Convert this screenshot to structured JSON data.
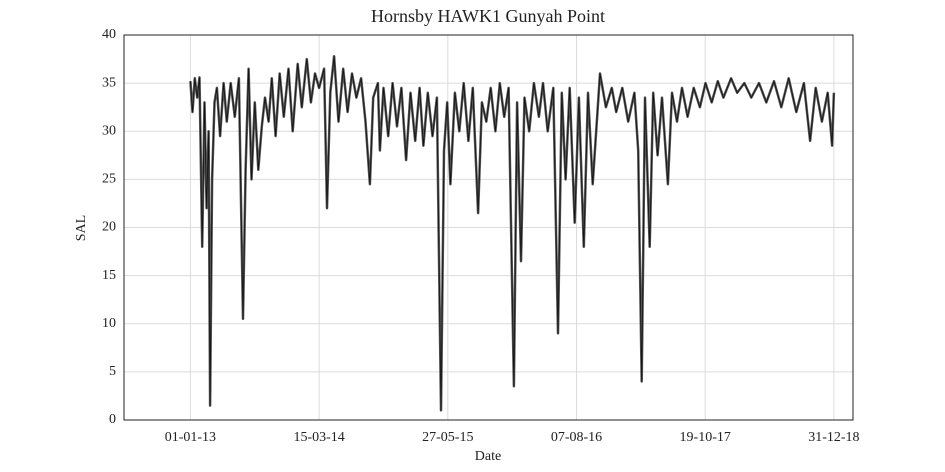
{
  "chart_data": {
    "type": "line",
    "title": "Hornsby HAWK1 Gunyah Point",
    "x_label": "Date",
    "y_label": "SAL",
    "xlim": [
      "2012-05-20",
      "2019-03-06"
    ],
    "xticks": [
      {
        "value": "2013-01-01",
        "label": "01-01-13"
      },
      {
        "value": "2014-03-15",
        "label": "15-03-14"
      },
      {
        "value": "2015-05-27",
        "label": "27-05-15"
      },
      {
        "value": "2016-08-07",
        "label": "07-08-16"
      },
      {
        "value": "2017-10-19",
        "label": "19-10-17"
      },
      {
        "value": "2018-12-31",
        "label": "31-12-18"
      }
    ],
    "ylim": [
      0,
      40
    ],
    "yticks": [
      0,
      5,
      10,
      15,
      20,
      25,
      30,
      35,
      40
    ],
    "grid": true,
    "x": [
      "2013-01-01",
      "2013-01-08",
      "2013-01-16",
      "2013-01-24",
      "2013-02-01",
      "2013-02-10",
      "2013-02-18",
      "2013-02-25",
      "2013-03-04",
      "2013-03-09",
      "2013-03-16",
      "2013-03-24",
      "2013-04-01",
      "2013-04-12",
      "2013-04-24",
      "2013-05-05",
      "2013-05-18",
      "2013-06-01",
      "2013-06-15",
      "2013-06-29",
      "2013-07-08",
      "2013-07-18",
      "2013-07-28",
      "2013-08-08",
      "2013-08-20",
      "2013-09-01",
      "2013-09-12",
      "2013-09-24",
      "2013-10-05",
      "2013-10-18",
      "2013-11-01",
      "2013-11-15",
      "2013-12-01",
      "2013-12-15",
      "2014-01-01",
      "2014-01-15",
      "2014-02-01",
      "2014-02-15",
      "2014-03-01",
      "2014-03-15",
      "2014-04-01",
      "2014-04-11",
      "2014-04-22",
      "2014-05-05",
      "2014-05-20",
      "2014-06-05",
      "2014-06-20",
      "2014-07-05",
      "2014-07-20",
      "2014-08-05",
      "2014-08-20",
      "2014-09-04",
      "2014-09-15",
      "2014-10-01",
      "2014-10-08",
      "2014-10-20",
      "2014-11-05",
      "2014-11-20",
      "2014-12-05",
      "2014-12-20",
      "2015-01-05",
      "2015-01-20",
      "2015-02-05",
      "2015-02-20",
      "2015-03-05",
      "2015-03-20",
      "2015-04-05",
      "2015-04-20",
      "2015-05-04",
      "2015-05-14",
      "2015-05-25",
      "2015-06-05",
      "2015-06-20",
      "2015-07-05",
      "2015-07-20",
      "2015-08-05",
      "2015-08-20",
      "2015-09-07",
      "2015-09-20",
      "2015-10-05",
      "2015-10-20",
      "2015-11-05",
      "2015-11-20",
      "2015-12-05",
      "2015-12-20",
      "2016-01-07",
      "2016-01-18",
      "2016-01-31",
      "2016-02-12",
      "2016-02-28",
      "2016-03-15",
      "2016-04-01",
      "2016-04-15",
      "2016-05-01",
      "2016-05-20",
      "2016-06-05",
      "2016-06-18",
      "2016-07-01",
      "2016-07-15",
      "2016-08-01",
      "2016-08-15",
      "2016-09-01",
      "2016-09-15",
      "2016-10-01",
      "2016-10-26",
      "2016-11-15",
      "2016-12-05",
      "2016-12-20",
      "2017-01-10",
      "2017-01-30",
      "2017-02-20",
      "2017-03-05",
      "2017-03-17",
      "2017-03-28",
      "2017-04-13",
      "2017-04-25",
      "2017-05-10",
      "2017-05-25",
      "2017-06-14",
      "2017-06-28",
      "2017-07-15",
      "2017-08-01",
      "2017-08-20",
      "2017-09-10",
      "2017-10-01",
      "2017-10-20",
      "2017-11-10",
      "2017-12-01",
      "2017-12-20",
      "2018-01-15",
      "2018-02-05",
      "2018-03-01",
      "2018-03-25",
      "2018-04-20",
      "2018-05-15",
      "2018-06-10",
      "2018-07-05",
      "2018-07-30",
      "2018-08-25",
      "2018-09-20",
      "2018-10-11",
      "2018-10-30",
      "2018-11-20",
      "2018-12-10",
      "2018-12-25",
      "2018-12-31"
    ],
    "series": [
      {
        "color": "#555555",
        "values": [
          35.2,
          32.0,
          35.5,
          33.5,
          35.6,
          18.0,
          33.0,
          22.0,
          30.0,
          1.5,
          25.0,
          33.0,
          34.5,
          29.5,
          35.0,
          31.0,
          35.0,
          31.5,
          35.5,
          10.5,
          26.0,
          36.5,
          25.0,
          33.0,
          26.0,
          30.5,
          33.5,
          31.0,
          35.5,
          29.5,
          36.0,
          31.5,
          36.5,
          30.0,
          37.0,
          32.5,
          37.5,
          33.0,
          36.0,
          34.5,
          36.5,
          22.0,
          34.0,
          37.8,
          31.0,
          36.5,
          32.0,
          36.0,
          33.5,
          35.5,
          31.0,
          24.5,
          33.5,
          35.0,
          28.0,
          34.5,
          29.5,
          35.0,
          30.5,
          34.5,
          27.0,
          34.0,
          29.0,
          34.5,
          28.5,
          34.0,
          29.5,
          33.5,
          1.0,
          28.0,
          33.0,
          24.5,
          34.0,
          30.0,
          35.0,
          29.0,
          34.5,
          21.5,
          33.0,
          31.0,
          34.5,
          30.0,
          35.0,
          31.5,
          34.5,
          3.5,
          33.0,
          16.5,
          33.5,
          30.0,
          35.0,
          31.5,
          35.0,
          30.0,
          34.5,
          9.0,
          34.0,
          25.0,
          34.5,
          20.5,
          33.5,
          18.0,
          34.0,
          24.5,
          36.0,
          32.5,
          34.5,
          32.0,
          34.5,
          31.0,
          34.0,
          28.0,
          4.0,
          33.5,
          18.0,
          34.0,
          27.5,
          33.5,
          24.5,
          34.0,
          31.0,
          34.5,
          31.5,
          34.5,
          32.5,
          35.0,
          33.0,
          35.2,
          33.5,
          35.5,
          34.0,
          35.0,
          33.5,
          35.0,
          33.0,
          35.2,
          32.5,
          35.5,
          32.0,
          35.0,
          29.0,
          34.5,
          31.0,
          34.0,
          28.5,
          34.0
        ]
      }
    ]
  }
}
